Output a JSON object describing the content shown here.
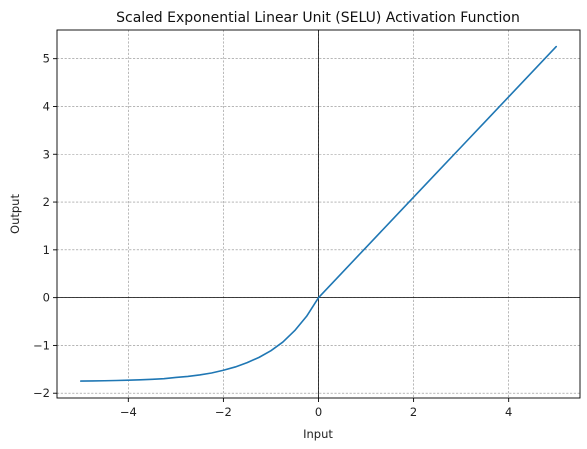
{
  "chart_data": {
    "type": "line",
    "title": "Scaled Exponential Linear Unit (SELU) Activation Function",
    "xlabel": "Input",
    "ylabel": "Output",
    "xlim": [
      -5.5,
      5.5
    ],
    "ylim": [
      -2.1,
      5.6
    ],
    "xticks": [
      -4,
      -2,
      0,
      2,
      4
    ],
    "xtick_labels": [
      "−4",
      "−2",
      "0",
      "2",
      "4"
    ],
    "yticks": [
      -2,
      -1,
      0,
      1,
      2,
      3,
      4,
      5
    ],
    "ytick_labels": [
      "−2",
      "−1",
      "0",
      "1",
      "2",
      "3",
      "4",
      "5"
    ],
    "grid": true,
    "reference_lines": {
      "x": 0,
      "y": 0
    },
    "series": [
      {
        "color": "#1f77b4",
        "x": [
          -5,
          -4.75,
          -4.5,
          -4.25,
          -4,
          -3.75,
          -3.5,
          -3.25,
          -3,
          -2.75,
          -2.5,
          -2.25,
          -2,
          -1.75,
          -1.5,
          -1.25,
          -1,
          -0.75,
          -0.5,
          -0.25,
          0,
          0.5,
          1,
          1.5,
          2,
          2.5,
          3,
          3.5,
          4,
          4.5,
          5
        ],
        "y": [
          -1.746,
          -1.742,
          -1.739,
          -1.734,
          -1.727,
          -1.719,
          -1.709,
          -1.696,
          -1.67,
          -1.648,
          -1.617,
          -1.577,
          -1.52,
          -1.45,
          -1.36,
          -1.25,
          -1.11,
          -0.93,
          -0.69,
          -0.39,
          0,
          0.525,
          1.051,
          1.576,
          2.101,
          2.627,
          3.152,
          3.677,
          4.203,
          4.728,
          5.254
        ]
      }
    ]
  }
}
